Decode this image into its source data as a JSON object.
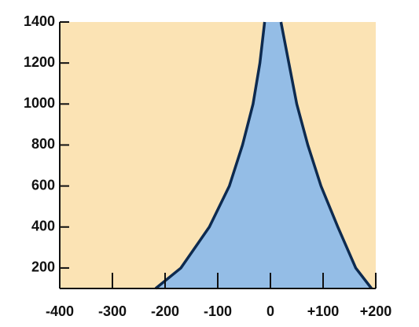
{
  "chart_data": {
    "type": "area",
    "boundaries": [
      {
        "x": [
          -218,
          -170,
          -116,
          -78,
          -53,
          -33,
          -20,
          -11
        ],
        "y": [
          100,
          200,
          400,
          600,
          800,
          1000,
          1200,
          1400
        ]
      },
      {
        "x": [
          20,
          35,
          50,
          71,
          96,
          128,
          162,
          192
        ],
        "y": [
          1400,
          1200,
          1000,
          800,
          600,
          400,
          200,
          100
        ]
      }
    ],
    "fill_color": "#94bde6",
    "line_color": "#0d2a4f",
    "background": "#fbe3b4",
    "xlim": [
      -400,
      200
    ],
    "ylim": [
      100,
      1400
    ],
    "xticks": [
      -400,
      -300,
      -200,
      -100,
      0,
      {
        "value": 100,
        "label": "+100"
      },
      {
        "value": 200,
        "label": "+200"
      }
    ],
    "yticks": [
      200,
      400,
      600,
      800,
      1000,
      1200,
      1400
    ]
  }
}
